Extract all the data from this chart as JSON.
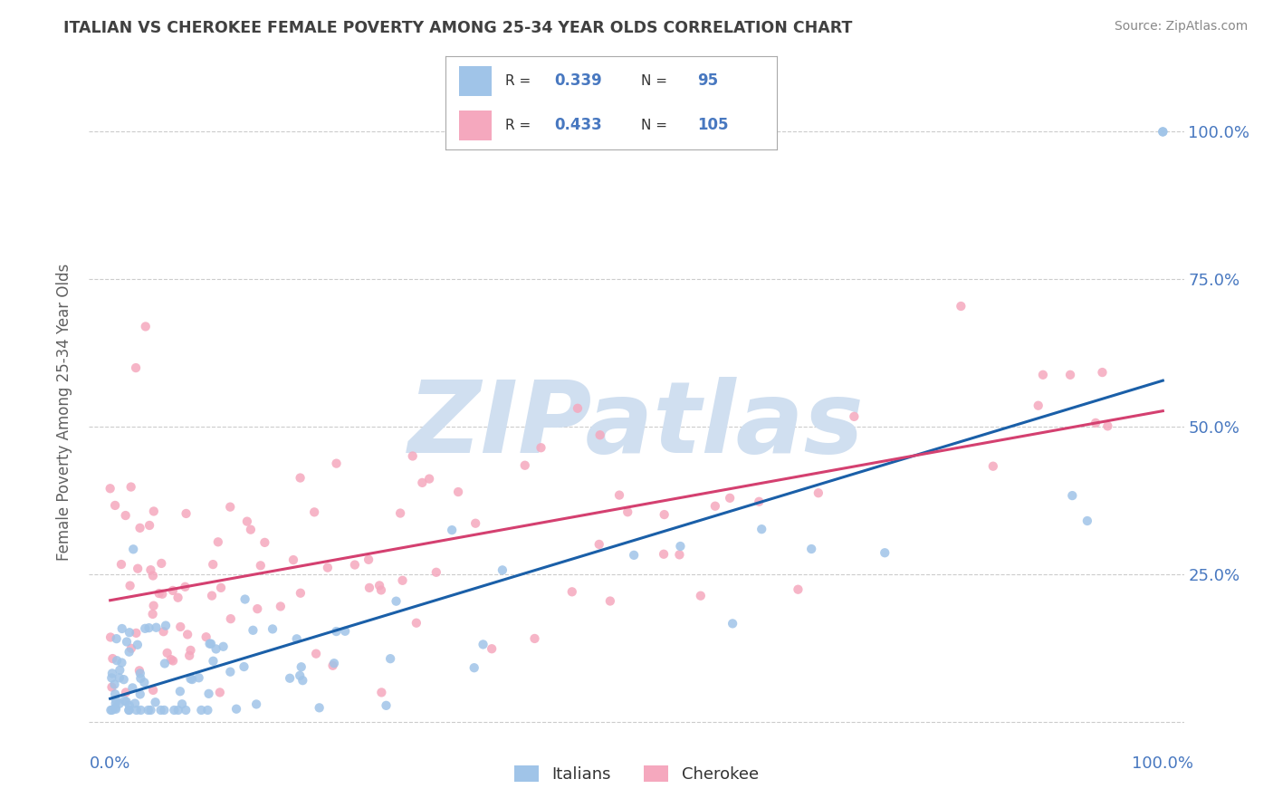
{
  "title": "ITALIAN VS CHEROKEE FEMALE POVERTY AMONG 25-34 YEAR OLDS CORRELATION CHART",
  "source": "Source: ZipAtlas.com",
  "ylabel": "Female Poverty Among 25-34 Year Olds",
  "xlim": [
    -2,
    102
  ],
  "ylim": [
    -5,
    110
  ],
  "xtick_positions": [
    0,
    100
  ],
  "xtick_labels": [
    "0.0%",
    "100.0%"
  ],
  "ytick_positions": [
    0,
    25,
    50,
    75,
    100
  ],
  "right_ytick_labels": [
    "25.0%",
    "50.0%",
    "75.0%",
    "100.0%"
  ],
  "right_ytick_positions": [
    25,
    50,
    75,
    100
  ],
  "legend_R_italian": "0.339",
  "legend_N_italian": "95",
  "legend_R_cherokee": "0.433",
  "legend_N_cherokee": "105",
  "blue_scatter_color": "#a0c4e8",
  "pink_scatter_color": "#f5a8be",
  "blue_line_color": "#1a5fa8",
  "pink_line_color": "#d44070",
  "watermark_text": "ZIPatlas",
  "watermark_color": "#d0dff0",
  "background_color": "#ffffff",
  "grid_color": "#cccccc",
  "title_color": "#404040",
  "axis_label_color": "#606060",
  "tick_label_color": "#4878c0",
  "source_color": "#888888",
  "legend_text_color": "#333333",
  "legend_value_color": "#4878c0"
}
